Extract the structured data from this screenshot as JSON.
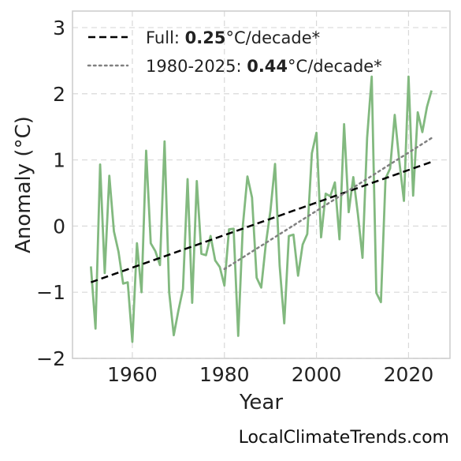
{
  "chart_data": {
    "type": "line",
    "xlabel": "Year",
    "ylabel": "Anomaly (°C)",
    "xlim": [
      1947,
      2029
    ],
    "ylim": [
      -2,
      3.25
    ],
    "xticks": [
      1960,
      1980,
      2000,
      2020
    ],
    "yticks": [
      3,
      2,
      1,
      0,
      -1,
      -2
    ],
    "ytick_labels": [
      "3",
      "2",
      "1",
      "0",
      "−1",
      "−2"
    ],
    "grid": true,
    "legend_position": "top-left",
    "series": [
      {
        "color": "#82b97f",
        "style": "solid",
        "x": [
          1951,
          1952,
          1953,
          1954,
          1955,
          1956,
          1957,
          1958,
          1959,
          1960,
          1961,
          1962,
          1963,
          1964,
          1965,
          1966,
          1967,
          1968,
          1969,
          1970,
          1971,
          1972,
          1973,
          1974,
          1975,
          1976,
          1977,
          1978,
          1979,
          1980,
          1981,
          1982,
          1983,
          1984,
          1985,
          1986,
          1987,
          1988,
          1989,
          1990,
          1991,
          1992,
          1993,
          1994,
          1995,
          1996,
          1997,
          1998,
          1999,
          2000,
          2001,
          2002,
          2003,
          2004,
          2005,
          2006,
          2007,
          2008,
          2009,
          2010,
          2011,
          2012,
          2013,
          2014,
          2015,
          2016,
          2017,
          2018,
          2019,
          2020,
          2021,
          2022,
          2023,
          2024,
          2025
        ],
        "y": [
          -0.61,
          -1.55,
          0.93,
          -0.71,
          0.76,
          -0.08,
          -0.39,
          -0.87,
          -0.85,
          -1.75,
          -0.26,
          -1.0,
          1.14,
          -0.26,
          -0.38,
          -0.59,
          1.28,
          -1.0,
          -1.65,
          -1.28,
          -0.95,
          0.71,
          -1.16,
          0.68,
          -0.42,
          -0.44,
          -0.15,
          -0.52,
          -0.62,
          -0.9,
          -0.05,
          -0.04,
          -1.66,
          0.0,
          0.75,
          0.43,
          -0.78,
          -0.93,
          -0.27,
          0.23,
          0.94,
          -0.6,
          -1.47,
          -0.15,
          -0.13,
          -0.75,
          -0.28,
          -0.12,
          1.1,
          1.41,
          -0.17,
          0.49,
          0.45,
          0.66,
          -0.2,
          1.54,
          0.21,
          0.74,
          0.18,
          -0.48,
          1.33,
          2.26,
          -1.01,
          -1.15,
          0.72,
          0.87,
          1.68,
          0.98,
          0.38,
          2.26,
          0.46,
          1.72,
          1.42,
          1.8,
          2.05
        ]
      },
      {
        "name": "Full: 0.25°C/decade*",
        "color": "#000000",
        "style": "dashed",
        "x": [
          1951,
          2025
        ],
        "y": [
          -0.85,
          0.97
        ]
      },
      {
        "name": "1980-2025: 0.44°C/decade*",
        "color": "#808080",
        "style": "dotted",
        "x": [
          1980,
          2025
        ],
        "y": [
          -0.65,
          1.33
        ]
      }
    ],
    "legend": [
      {
        "prefix": "Full: ",
        "rate": "0.25",
        "suffix": "°C/decade*",
        "style": "dashed",
        "color": "#000000"
      },
      {
        "prefix": "1980-2025: ",
        "rate": "0.44",
        "suffix": "°C/decade*",
        "style": "dotted",
        "color": "#808080"
      }
    ]
  },
  "watermark": "LocalClimateTrends.com"
}
